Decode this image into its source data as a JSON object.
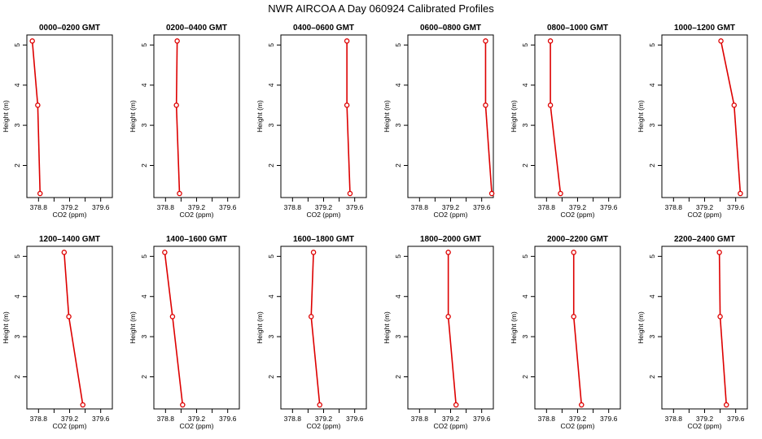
{
  "figure": {
    "title": "NWR AIRCOA A  Day 060924  Calibrated Profiles",
    "line_color": "#dd0000",
    "marker_color": "#dd0000"
  },
  "chart_data": [
    {
      "type": "line",
      "title": "0000–0200 GMT",
      "xlabel": "CO2 (ppm)",
      "ylabel": "Height (m)",
      "xlim": [
        378.65,
        379.75
      ],
      "ylim": [
        1.2,
        5.25
      ],
      "xticks": [
        378.8,
        379.0,
        379.2,
        379.4,
        379.6
      ],
      "xtick_labels": [
        "378.8",
        "",
        "379.2",
        "",
        "379.6"
      ],
      "yticks": [
        2,
        3,
        4,
        5
      ],
      "ytick_labels": [
        "2",
        "3",
        "4",
        "5"
      ],
      "points": [
        {
          "x": 378.72,
          "y": 5.1
        },
        {
          "x": 378.79,
          "y": 3.5
        },
        {
          "x": 378.82,
          "y": 1.3
        }
      ]
    },
    {
      "type": "line",
      "title": "0200–0400 GMT",
      "xlabel": "CO2 (ppm)",
      "ylabel": "Height (m)",
      "xlim": [
        378.65,
        379.75
      ],
      "ylim": [
        1.2,
        5.25
      ],
      "xticks": [
        378.8,
        379.0,
        379.2,
        379.4,
        379.6
      ],
      "xtick_labels": [
        "378.8",
        "",
        "379.2",
        "",
        "379.6"
      ],
      "yticks": [
        2,
        3,
        4,
        5
      ],
      "ytick_labels": [
        "2",
        "3",
        "4",
        "5"
      ],
      "points": [
        {
          "x": 378.95,
          "y": 5.1
        },
        {
          "x": 378.94,
          "y": 3.5
        },
        {
          "x": 378.98,
          "y": 1.3
        }
      ]
    },
    {
      "type": "line",
      "title": "0400–0600 GMT",
      "xlabel": "CO2 (ppm)",
      "ylabel": "Height (m)",
      "xlim": [
        378.65,
        379.75
      ],
      "ylim": [
        1.2,
        5.25
      ],
      "xticks": [
        378.8,
        379.0,
        379.2,
        379.4,
        379.6
      ],
      "xtick_labels": [
        "378.8",
        "",
        "379.2",
        "",
        "379.6"
      ],
      "yticks": [
        2,
        3,
        4,
        5
      ],
      "ytick_labels": [
        "2",
        "3",
        "4",
        "5"
      ],
      "points": [
        {
          "x": 379.5,
          "y": 5.1
        },
        {
          "x": 379.5,
          "y": 3.5
        },
        {
          "x": 379.54,
          "y": 1.3
        }
      ]
    },
    {
      "type": "line",
      "title": "0600–0800 GMT",
      "xlabel": "CO2 (ppm)",
      "ylabel": "Height (m)",
      "xlim": [
        378.65,
        379.75
      ],
      "ylim": [
        1.2,
        5.25
      ],
      "xticks": [
        378.8,
        379.0,
        379.2,
        379.4,
        379.6
      ],
      "xtick_labels": [
        "378.8",
        "",
        "379.2",
        "",
        "379.6"
      ],
      "yticks": [
        2,
        3,
        4,
        5
      ],
      "ytick_labels": [
        "2",
        "3",
        "4",
        "5"
      ],
      "points": [
        {
          "x": 379.65,
          "y": 5.1
        },
        {
          "x": 379.65,
          "y": 3.5
        },
        {
          "x": 379.73,
          "y": 1.3
        }
      ]
    },
    {
      "type": "line",
      "title": "0800–1000 GMT",
      "xlabel": "CO2 (ppm)",
      "ylabel": "Height (m)",
      "xlim": [
        378.65,
        379.75
      ],
      "ylim": [
        1.2,
        5.25
      ],
      "xticks": [
        378.8,
        379.0,
        379.2,
        379.4,
        379.6
      ],
      "xtick_labels": [
        "378.8",
        "",
        "379.2",
        "",
        "379.6"
      ],
      "yticks": [
        2,
        3,
        4,
        5
      ],
      "ytick_labels": [
        "2",
        "3",
        "4",
        "5"
      ],
      "points": [
        {
          "x": 378.85,
          "y": 5.1
        },
        {
          "x": 378.85,
          "y": 3.5
        },
        {
          "x": 378.98,
          "y": 1.3
        }
      ]
    },
    {
      "type": "line",
      "title": "1000–1200 GMT",
      "xlabel": "CO2 (ppm)",
      "ylabel": "Height (m)",
      "xlim": [
        378.65,
        379.75
      ],
      "ylim": [
        1.2,
        5.25
      ],
      "xticks": [
        378.8,
        379.0,
        379.2,
        379.4,
        379.6
      ],
      "xtick_labels": [
        "378.8",
        "",
        "379.2",
        "",
        "379.6"
      ],
      "yticks": [
        2,
        3,
        4,
        5
      ],
      "ytick_labels": [
        "2",
        "3",
        "4",
        "5"
      ],
      "points": [
        {
          "x": 379.41,
          "y": 5.1
        },
        {
          "x": 379.58,
          "y": 3.5
        },
        {
          "x": 379.66,
          "y": 1.3
        }
      ]
    },
    {
      "type": "line",
      "title": "1200–1400 GMT",
      "xlabel": "CO2 (ppm)",
      "ylabel": "Height (m)",
      "xlim": [
        378.65,
        379.75
      ],
      "ylim": [
        1.2,
        5.25
      ],
      "xticks": [
        378.8,
        379.0,
        379.2,
        379.4,
        379.6
      ],
      "xtick_labels": [
        "378.8",
        "",
        "379.2",
        "",
        "379.6"
      ],
      "yticks": [
        2,
        3,
        4,
        5
      ],
      "ytick_labels": [
        "2",
        "3",
        "4",
        "5"
      ],
      "points": [
        {
          "x": 379.13,
          "y": 5.1
        },
        {
          "x": 379.19,
          "y": 3.5
        },
        {
          "x": 379.37,
          "y": 1.3
        }
      ]
    },
    {
      "type": "line",
      "title": "1400–1600 GMT",
      "xlabel": "CO2 (ppm)",
      "ylabel": "Height (m)",
      "xlim": [
        378.65,
        379.75
      ],
      "ylim": [
        1.2,
        5.25
      ],
      "xticks": [
        378.8,
        379.0,
        379.2,
        379.4,
        379.6
      ],
      "xtick_labels": [
        "378.8",
        "",
        "379.2",
        "",
        "379.6"
      ],
      "yticks": [
        2,
        3,
        4,
        5
      ],
      "ytick_labels": [
        "2",
        "3",
        "4",
        "5"
      ],
      "points": [
        {
          "x": 378.79,
          "y": 5.1
        },
        {
          "x": 378.89,
          "y": 3.5
        },
        {
          "x": 379.02,
          "y": 1.3
        }
      ]
    },
    {
      "type": "line",
      "title": "1600–1800 GMT",
      "xlabel": "CO2 (ppm)",
      "ylabel": "Height (m)",
      "xlim": [
        378.65,
        379.75
      ],
      "ylim": [
        1.2,
        5.25
      ],
      "xticks": [
        378.8,
        379.0,
        379.2,
        379.4,
        379.6
      ],
      "xtick_labels": [
        "378.8",
        "",
        "379.2",
        "",
        "379.6"
      ],
      "yticks": [
        2,
        3,
        4,
        5
      ],
      "ytick_labels": [
        "2",
        "3",
        "4",
        "5"
      ],
      "points": [
        {
          "x": 379.07,
          "y": 5.1
        },
        {
          "x": 379.04,
          "y": 3.5
        },
        {
          "x": 379.15,
          "y": 1.3
        }
      ]
    },
    {
      "type": "line",
      "title": "1800–2000 GMT",
      "xlabel": "CO2 (ppm)",
      "ylabel": "Height (m)",
      "xlim": [
        378.65,
        379.75
      ],
      "ylim": [
        1.2,
        5.25
      ],
      "xticks": [
        378.8,
        379.0,
        379.2,
        379.4,
        379.6
      ],
      "xtick_labels": [
        "378.8",
        "",
        "379.2",
        "",
        "379.6"
      ],
      "yticks": [
        2,
        3,
        4,
        5
      ],
      "ytick_labels": [
        "2",
        "3",
        "4",
        "5"
      ],
      "points": [
        {
          "x": 379.17,
          "y": 5.1
        },
        {
          "x": 379.17,
          "y": 3.5
        },
        {
          "x": 379.27,
          "y": 1.3
        }
      ]
    },
    {
      "type": "line",
      "title": "2000–2200 GMT",
      "xlabel": "CO2 (ppm)",
      "ylabel": "Height (m)",
      "xlim": [
        378.65,
        379.75
      ],
      "ylim": [
        1.2,
        5.25
      ],
      "xticks": [
        378.8,
        379.0,
        379.2,
        379.4,
        379.6
      ],
      "xtick_labels": [
        "378.8",
        "",
        "379.2",
        "",
        "379.6"
      ],
      "yticks": [
        2,
        3,
        4,
        5
      ],
      "ytick_labels": [
        "2",
        "3",
        "4",
        "5"
      ],
      "points": [
        {
          "x": 379.15,
          "y": 5.1
        },
        {
          "x": 379.15,
          "y": 3.5
        },
        {
          "x": 379.25,
          "y": 1.3
        }
      ]
    },
    {
      "type": "line",
      "title": "2200–2400 GMT",
      "xlabel": "CO2 (ppm)",
      "ylabel": "Height (m)",
      "xlim": [
        378.65,
        379.75
      ],
      "ylim": [
        1.2,
        5.25
      ],
      "xticks": [
        378.8,
        379.0,
        379.2,
        379.4,
        379.6
      ],
      "xtick_labels": [
        "378.8",
        "",
        "379.2",
        "",
        "379.6"
      ],
      "yticks": [
        2,
        3,
        4,
        5
      ],
      "ytick_labels": [
        "2",
        "3",
        "4",
        "5"
      ],
      "points": [
        {
          "x": 379.39,
          "y": 5.1
        },
        {
          "x": 379.4,
          "y": 3.5
        },
        {
          "x": 379.48,
          "y": 1.3
        }
      ]
    }
  ]
}
